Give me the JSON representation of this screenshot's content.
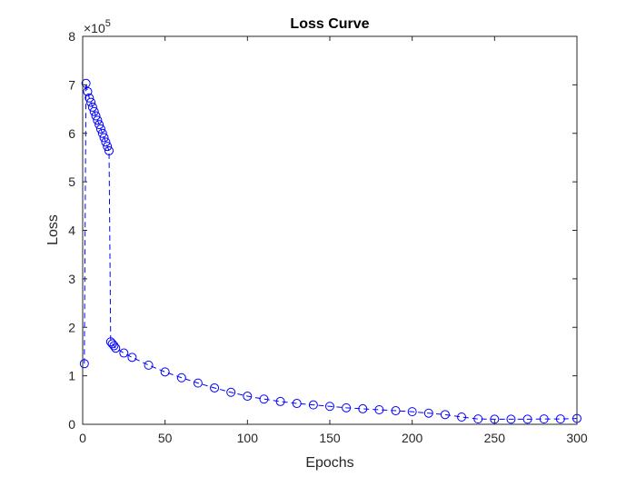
{
  "chart_data": {
    "type": "line",
    "title": "Loss Curve",
    "xlabel": "Epochs",
    "ylabel": "Loss",
    "xlim": [
      0,
      300
    ],
    "ylim": [
      0,
      800000
    ],
    "x_ticks": [
      "0",
      "50",
      "100",
      "150",
      "200",
      "250",
      "300"
    ],
    "y_ticks": [
      "0",
      "1",
      "2",
      "3",
      "4",
      "5",
      "6",
      "7",
      "8"
    ],
    "y_multiplier": "×10",
    "y_multiplier_exponent": "5",
    "grid": false,
    "marker": "circle",
    "line_style": "dashed",
    "color": "#0000ff",
    "series": [
      {
        "x": [
          1,
          2,
          3,
          4,
          5,
          6,
          7,
          8,
          9,
          10,
          11,
          12,
          13,
          14,
          15,
          16,
          17,
          18,
          19,
          20,
          25,
          30,
          40,
          50,
          60,
          70,
          80,
          90,
          100,
          110,
          120,
          130,
          140,
          150,
          160,
          170,
          180,
          190,
          200,
          210,
          220,
          230,
          240,
          250,
          260,
          270,
          280,
          290,
          300
        ],
        "y": [
          125000,
          703000,
          686000,
          673000,
          664000,
          654000,
          645000,
          636000,
          627000,
          618000,
          609000,
          600000,
          591000,
          582000,
          573000,
          564000,
          170000,
          166000,
          162000,
          157000,
          147000,
          138000,
          122000,
          108000,
          96000,
          85000,
          75000,
          66000,
          58000,
          52000,
          47000,
          43000,
          40000,
          37000,
          34000,
          32000,
          30000,
          28000,
          26000,
          23000,
          20000,
          15000,
          11000,
          10500,
          10500,
          10500,
          11000,
          11000,
          12000
        ]
      }
    ]
  }
}
